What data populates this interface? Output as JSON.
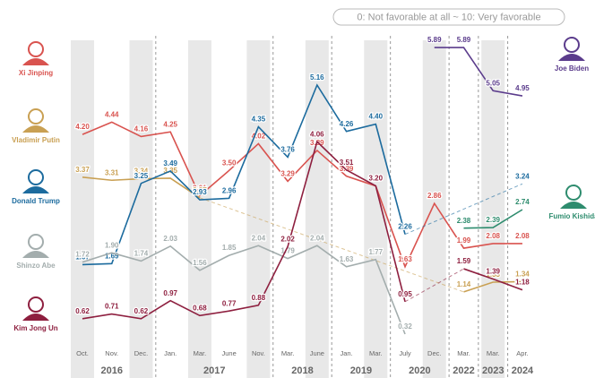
{
  "chart_data": {
    "type": "line",
    "subtitle": "0: Not favorable at all ~ 10: Very favorable",
    "categories": [
      {
        "month": "Oct.",
        "year": "2016"
      },
      {
        "month": "Nov.",
        "year": "2016"
      },
      {
        "month": "Dec.",
        "year": "2016"
      },
      {
        "month": "Jan.",
        "year": "2017"
      },
      {
        "month": "Mar.",
        "year": "2017"
      },
      {
        "month": "June",
        "year": "2017"
      },
      {
        "month": "Nov.",
        "year": "2017"
      },
      {
        "month": "Mar.",
        "year": "2018"
      },
      {
        "month": "June",
        "year": "2018"
      },
      {
        "month": "Jan.",
        "year": "2019"
      },
      {
        "month": "Mar.",
        "year": "2019"
      },
      {
        "month": "July",
        "year": "2020"
      },
      {
        "month": "Dec.",
        "year": "2020"
      },
      {
        "month": "Mar.",
        "year": "2022"
      },
      {
        "month": "Mar.",
        "year": "2023"
      },
      {
        "month": "Apr.",
        "year": "2024"
      }
    ],
    "ylim": [
      0,
      6.5
    ],
    "series": [
      {
        "name": "Xi Jinping",
        "color": "#d9534f",
        "values": [
          4.2,
          4.44,
          4.16,
          4.25,
          3.01,
          3.5,
          4.02,
          3.29,
          3.89,
          3.39,
          3.2,
          1.63,
          2.86,
          1.99,
          2.08,
          2.08
        ],
        "value_labels": [
          "4.20",
          "4.44",
          "4.16",
          "4.25",
          "3.01",
          "3.50",
          "4.02",
          "3.29",
          "3.89",
          "3.39",
          "3.20",
          "1.63",
          "2.86",
          "1.99",
          "2.08",
          "2.08"
        ]
      },
      {
        "name": "Vladimir Putin",
        "color": "#c9a053",
        "values": [
          3.37,
          3.31,
          3.34,
          3.35,
          2.97,
          null,
          null,
          null,
          null,
          null,
          null,
          null,
          null,
          1.14,
          1.33,
          1.34
        ],
        "value_labels": [
          "3.37",
          "3.31",
          "3.34",
          "3.35",
          "2.97",
          null,
          null,
          null,
          null,
          null,
          null,
          null,
          null,
          "1.14",
          "1.33",
          "1.34"
        ]
      },
      {
        "name": "Donald Trump",
        "color": "#1c6b9e",
        "values": [
          1.67,
          1.69,
          3.25,
          3.49,
          2.93,
          2.96,
          4.35,
          3.76,
          5.16,
          4.26,
          4.4,
          2.26,
          null,
          null,
          null,
          3.24
        ],
        "value_labels": [
          "1.67",
          "1.69",
          "3.25",
          "3.49",
          "2.93",
          "2.96",
          "4.35",
          "3.76",
          "5.16",
          "4.26",
          "4.40",
          "2.26",
          null,
          null,
          null,
          "3.24"
        ]
      },
      {
        "name": "Shinzo Abe",
        "color": "#a3adad",
        "values": [
          1.72,
          1.9,
          1.74,
          2.03,
          1.56,
          1.85,
          2.04,
          1.79,
          2.04,
          1.63,
          1.77,
          0.32,
          null,
          null,
          null,
          null
        ],
        "value_labels": [
          "1.72",
          "1.90",
          "1.74",
          "2.03",
          "1.56",
          "1.85",
          "2.04",
          "1.79",
          "2.04",
          "1.63",
          "1.77",
          "0.32",
          null,
          null,
          null,
          null
        ]
      },
      {
        "name": "Kim Jong Un",
        "color": "#8e1f3f",
        "values": [
          0.62,
          0.71,
          0.62,
          0.97,
          0.68,
          0.77,
          0.88,
          2.02,
          4.06,
          3.51,
          3.2,
          0.95,
          null,
          1.59,
          1.39,
          1.18
        ],
        "value_labels": [
          "0.62",
          "0.71",
          "0.62",
          "0.97",
          "0.68",
          "0.77",
          "0.88",
          "2.02",
          "4.06",
          "3.51",
          "3.20",
          "0.95",
          null,
          "1.59",
          "1.39",
          "1.18"
        ]
      },
      {
        "name": "Joe Biden",
        "color": "#5b3c8c",
        "values": [
          null,
          null,
          null,
          null,
          null,
          null,
          null,
          null,
          null,
          null,
          null,
          null,
          5.89,
          5.89,
          5.05,
          4.95
        ],
        "value_labels": [
          null,
          null,
          null,
          null,
          null,
          null,
          null,
          null,
          null,
          null,
          null,
          null,
          "5.89",
          "5.89",
          "5.05",
          "4.95"
        ]
      },
      {
        "name": "Fumio Kishida",
        "color": "#2e8c6e",
        "values": [
          null,
          null,
          null,
          null,
          null,
          null,
          null,
          null,
          null,
          null,
          null,
          null,
          null,
          2.38,
          2.39,
          2.74
        ],
        "value_labels": [
          null,
          null,
          null,
          null,
          null,
          null,
          null,
          null,
          null,
          null,
          null,
          null,
          null,
          "2.38",
          "2.39",
          "2.74"
        ]
      }
    ]
  }
}
